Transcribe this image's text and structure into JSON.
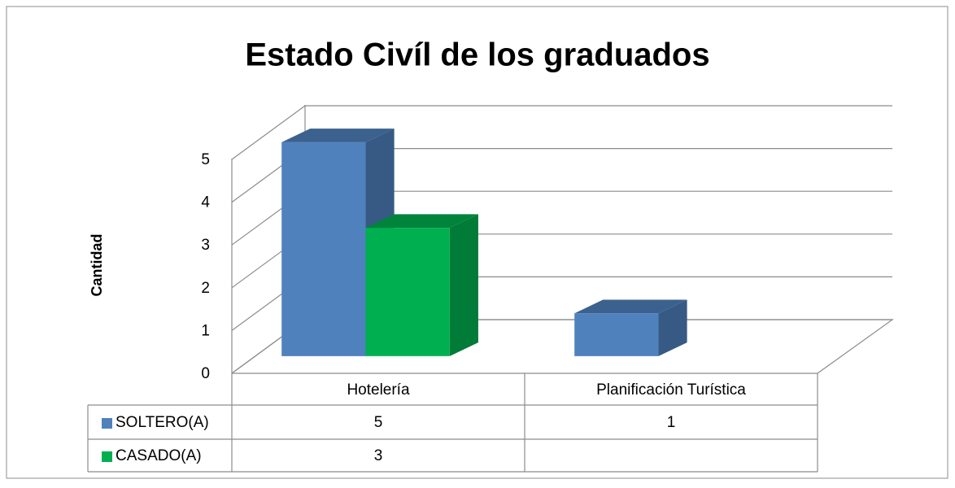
{
  "chart_data": {
    "type": "bar3d",
    "title": "Estado Civíl de los graduados",
    "y_label": "Cantidad",
    "categories": [
      "Hotelería",
      "Planificación Turística"
    ],
    "series": [
      {
        "name": "SOLTERO(A)",
        "color": "#4f81bd",
        "values": [
          5,
          1
        ]
      },
      {
        "name": "CASADO(A)",
        "color": "#00b050",
        "values": [
          3,
          null
        ]
      }
    ],
    "ylim": [
      0,
      5
    ],
    "yticks": [
      0,
      1,
      2,
      3,
      4,
      5
    ],
    "grid": true,
    "legend": "table"
  }
}
